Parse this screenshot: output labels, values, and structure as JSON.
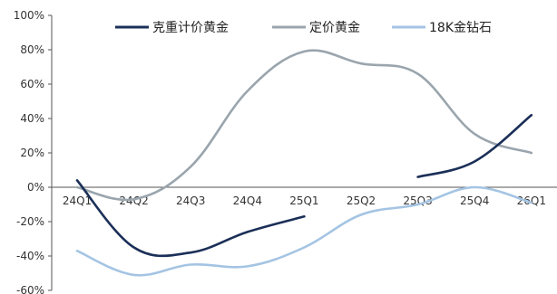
{
  "chart_data": {
    "type": "line",
    "title": "",
    "xlabel": "",
    "ylabel": "",
    "categories": [
      "24Q1",
      "24Q2",
      "24Q3",
      "24Q4",
      "25Q1",
      "25Q2",
      "25Q3",
      "25Q4",
      "26Q1"
    ],
    "y_ticks": [
      "100%",
      "80%",
      "60%",
      "40%",
      "20%",
      "0%",
      "-20%",
      "-40%",
      "-60%"
    ],
    "ylim": [
      -60,
      100
    ],
    "y_unit": "%",
    "grid": false,
    "legend_position": "top",
    "series": [
      {
        "name": "克重计价黄金",
        "color": "#1b2f58",
        "values": [
          4,
          -35,
          -38,
          -26,
          -17,
          null,
          6,
          15,
          42
        ]
      },
      {
        "name": "定价黄金",
        "color": "#9aa5ad",
        "values": [
          0,
          -7,
          12,
          56,
          79,
          72,
          66,
          31,
          20
        ]
      },
      {
        "name": "18K金钻石",
        "color": "#a4c4e3",
        "values": [
          -37,
          -51,
          -45,
          -46,
          -35,
          -16,
          -10,
          0,
          -9
        ]
      }
    ]
  }
}
